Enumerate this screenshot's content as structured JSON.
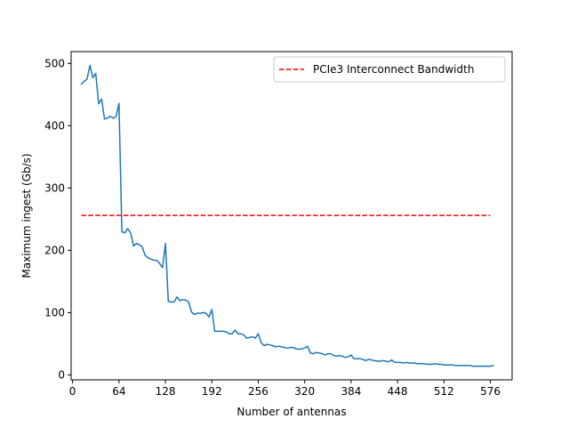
{
  "chart_data": {
    "type": "line",
    "title": "",
    "xlabel": "Number of antennas",
    "ylabel": "Maximum ingest (Gb/s)",
    "xlim": [
      -2,
      606
    ],
    "ylim": [
      -8,
      519
    ],
    "xticks": [
      0,
      64,
      128,
      192,
      256,
      320,
      384,
      448,
      512,
      576
    ],
    "yticks": [
      0,
      100,
      200,
      300,
      400,
      500
    ],
    "grid": false,
    "legend": {
      "placement": "top-right"
    },
    "series": [
      {
        "name": "",
        "color": "#1f77b4",
        "style": "solid",
        "x": [
          12,
          16,
          20,
          24,
          28,
          32,
          36,
          40,
          44,
          48,
          52,
          56,
          60,
          64,
          68,
          72,
          76,
          80,
          84,
          88,
          92,
          96,
          100,
          104,
          108,
          112,
          116,
          120,
          124,
          128,
          132,
          136,
          140,
          144,
          148,
          152,
          156,
          160,
          164,
          168,
          172,
          176,
          180,
          184,
          188,
          192,
          196,
          200,
          204,
          208,
          212,
          216,
          220,
          224,
          228,
          232,
          236,
          240,
          244,
          248,
          252,
          256,
          260,
          264,
          268,
          272,
          276,
          280,
          284,
          288,
          292,
          296,
          300,
          304,
          308,
          312,
          316,
          320,
          324,
          328,
          332,
          336,
          340,
          344,
          348,
          352,
          356,
          360,
          364,
          368,
          372,
          376,
          380,
          384,
          388,
          392,
          396,
          400,
          404,
          408,
          412,
          416,
          420,
          424,
          428,
          432,
          436,
          440,
          444,
          448,
          452,
          456,
          460,
          464,
          468,
          472,
          476,
          480,
          484,
          488,
          492,
          496,
          500,
          504,
          508,
          512,
          516,
          520,
          524,
          528,
          532,
          536,
          540,
          544,
          548,
          552,
          556,
          560,
          564,
          568,
          572,
          576,
          580
        ],
        "y": [
          467,
          471,
          475,
          497,
          477,
          484,
          435,
          443,
          411,
          412,
          415,
          412,
          415,
          436,
          230,
          228,
          235,
          228,
          207,
          211,
          209,
          206,
          192,
          188,
          186,
          184,
          184,
          179,
          172,
          211,
          118,
          117,
          117,
          125,
          119,
          121,
          120,
          117,
          101,
          97,
          99,
          99,
          100,
          99,
          93,
          105,
          70,
          70,
          70,
          70,
          69,
          66,
          66,
          72,
          66,
          66,
          64,
          59,
          60,
          61,
          59,
          66,
          52,
          47,
          49,
          48,
          47,
          45,
          46,
          45,
          44,
          43,
          44,
          44,
          42,
          41,
          42,
          43,
          46,
          35,
          34,
          36,
          35,
          34,
          32,
          34,
          34,
          31,
          30,
          31,
          30,
          28,
          29,
          32,
          26,
          26,
          26,
          25,
          23,
          25,
          24,
          23,
          22,
          22,
          23,
          22,
          21,
          24,
          20,
          20,
          20,
          19,
          20,
          19,
          19,
          19,
          18,
          18,
          18,
          17,
          17,
          17,
          18,
          17,
          17,
          16,
          16,
          16,
          16,
          15,
          15,
          15,
          15,
          15,
          15,
          14,
          14,
          14,
          14,
          14,
          14,
          14,
          15
        ]
      },
      {
        "name": "PCIe3 Interconnect Bandwidth",
        "color": "#ff0000",
        "style": "dashed",
        "x": [
          12,
          576
        ],
        "y": [
          256,
          256
        ]
      }
    ]
  }
}
